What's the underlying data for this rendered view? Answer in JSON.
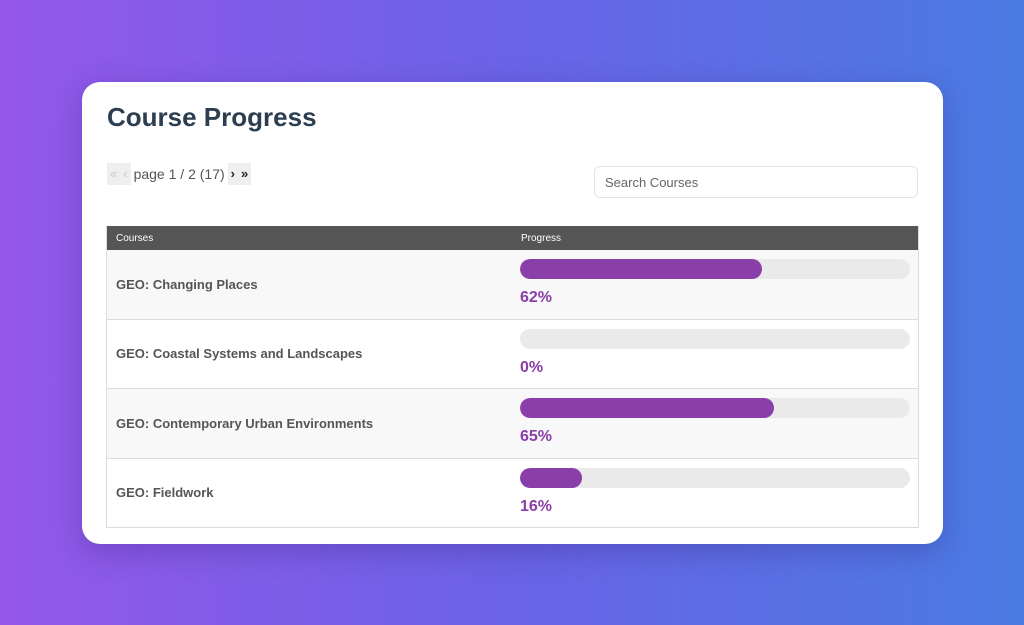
{
  "title": "Course Progress",
  "pager": {
    "first": "«",
    "prev": "‹",
    "info": "page 1 / 2 (17)",
    "next": "›",
    "last": "»"
  },
  "search": {
    "placeholder": "Search Courses",
    "value": ""
  },
  "table": {
    "headers": {
      "courses": "Courses",
      "progress": "Progress"
    },
    "rows": [
      {
        "course": "GEO: Changing Places",
        "percent": 62,
        "label": "62%"
      },
      {
        "course": "GEO: Coastal Systems and Landscapes",
        "percent": 0,
        "label": "0%"
      },
      {
        "course": "GEO: Contemporary Urban Environments",
        "percent": 65,
        "label": "65%"
      },
      {
        "course": "GEO: Fieldwork",
        "percent": 16,
        "label": "16%"
      }
    ]
  },
  "colors": {
    "accent": "#8a3ea8",
    "header_bg": "#555555",
    "track": "#eaeaea"
  }
}
